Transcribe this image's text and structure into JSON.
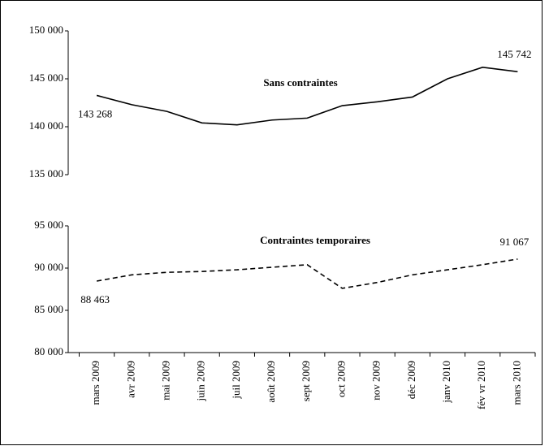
{
  "chart_data": [
    {
      "type": "line",
      "series": [
        {
          "name": "Sans contraintes",
          "color": "#000000",
          "line_style": "solid",
          "values": [
            143268,
            142300,
            141600,
            140400,
            140200,
            140700,
            140900,
            142200,
            142600,
            143100,
            145000,
            146200,
            145742
          ],
          "value_labels": [
            "143 268",
            null,
            null,
            null,
            null,
            null,
            null,
            null,
            null,
            null,
            null,
            null,
            "145 742"
          ]
        }
      ],
      "ylim": [
        135000,
        150000
      ],
      "yticks": [
        {
          "value": 135000,
          "label": "135 000"
        },
        {
          "value": 140000,
          "label": "140 000"
        },
        {
          "value": 145000,
          "label": "145 000"
        },
        {
          "value": 150000,
          "label": "150 000"
        }
      ]
    },
    {
      "type": "line",
      "categories": [
        "mars 2009",
        "avr 2009",
        "mai 2009",
        "juin 2009",
        "juil 2009",
        "août 2009",
        "sept 2009",
        "oct 2009",
        "nov 2009",
        "déc 2009",
        "janv 2010",
        "fév vr 2010",
        "mars 2010"
      ],
      "series": [
        {
          "name": "Contraintes temporaires",
          "color": "#000000",
          "line_style": "dashed",
          "values": [
            88463,
            89200,
            89500,
            89600,
            89800,
            90100,
            90400,
            87600,
            88300,
            89200,
            89800,
            90400,
            91067
          ],
          "value_labels": [
            "88 463",
            null,
            null,
            null,
            null,
            null,
            null,
            null,
            null,
            null,
            null,
            null,
            "91 067"
          ]
        }
      ],
      "ylim": [
        80000,
        95000
      ],
      "yticks": [
        {
          "value": 80000,
          "label": "80 000"
        },
        {
          "value": 85000,
          "label": "85 000"
        },
        {
          "value": 90000,
          "label": "90 000"
        },
        {
          "value": 95000,
          "label": "95 000"
        }
      ]
    }
  ]
}
